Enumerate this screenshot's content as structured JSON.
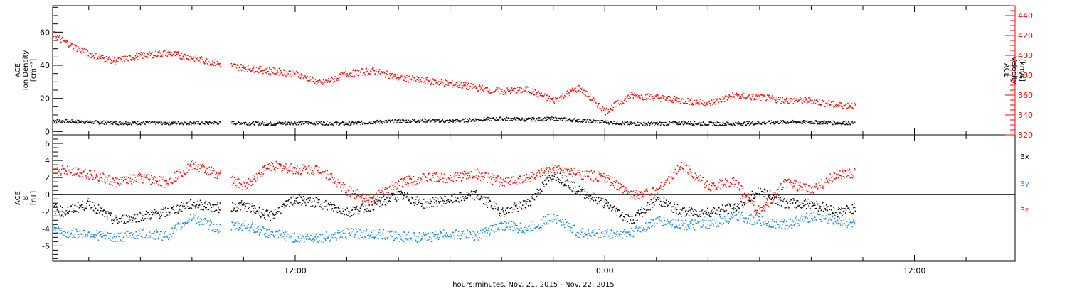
{
  "footer_label": "hours:minutes, Nov. 21, 2015 - Nov. 22, 2015",
  "colors": {
    "axis": "#000000",
    "velocity": "#ff0000",
    "density": "#000000",
    "bx": "#000000",
    "by": "#1e8ad4",
    "bz": "#ff0000"
  },
  "chart_data": [
    {
      "type": "scatter",
      "panel": "plasma",
      "ylabel_lines": [
        "ACE",
        "Ion Density",
        "[cm⁻³]"
      ],
      "ylim": [
        -2,
        76
      ],
      "yticks": [
        "0",
        "20",
        "40",
        "60"
      ],
      "ytick_values": [
        0,
        20,
        40,
        60
      ],
      "y2label_lines": [
        "ACE",
        "Velocity",
        "[km/s]"
      ],
      "y2lim": [
        320,
        450
      ],
      "y2ticks": [
        "320",
        "340",
        "360",
        "380",
        "400",
        "420",
        "440"
      ],
      "y2tick_values": [
        320,
        340,
        360,
        380,
        400,
        420,
        440
      ],
      "xlim_hours": [
        2.6,
        39.9
      ],
      "xtick_labels": [
        "12:00",
        "0:00",
        "12:00"
      ],
      "xtick_hours": [
        12,
        24,
        36
      ],
      "series": [
        {
          "name": "Ion Density",
          "axis": "left",
          "color": "#000000",
          "x": [
            2.6,
            3,
            4,
            5,
            6,
            7,
            8,
            9,
            10,
            11,
            12,
            13,
            14,
            15,
            16,
            17,
            18,
            19,
            20,
            21,
            22,
            23,
            24,
            25,
            26,
            27,
            28,
            29,
            30,
            31,
            32,
            33,
            33.7
          ],
          "y": [
            7,
            6.5,
            6,
            5.5,
            5.5,
            5.5,
            5.5,
            5.5,
            5.5,
            5,
            5.5,
            5.5,
            5,
            6,
            6.5,
            7,
            6.5,
            7.5,
            8,
            7.5,
            8,
            7,
            6,
            5,
            5,
            5.5,
            5,
            5,
            5.5,
            6,
            6,
            5.5,
            5.5
          ]
        },
        {
          "name": "Velocity",
          "axis": "right",
          "color": "#ff0000",
          "x": [
            2.6,
            3,
            3.5,
            4,
            4.5,
            5,
            6,
            7,
            8,
            9,
            10,
            11,
            12,
            13,
            14,
            15,
            16,
            17,
            18,
            19,
            20,
            21,
            22,
            23,
            24,
            25,
            26,
            27,
            28,
            29,
            30,
            31,
            32,
            33,
            33.7
          ],
          "y": [
            422,
            415,
            408,
            402,
            398,
            395,
            400,
            403,
            398,
            392,
            388,
            385,
            382,
            372,
            382,
            385,
            378,
            375,
            372,
            368,
            364,
            366,
            355,
            368,
            344,
            360,
            358,
            355,
            352,
            360,
            358,
            355,
            355,
            350,
            350
          ]
        }
      ]
    },
    {
      "type": "scatter",
      "panel": "imf",
      "ylabel_lines": [
        "ACE",
        "B",
        "[nT]"
      ],
      "ylim": [
        -7.8,
        7
      ],
      "yticks": [
        "-6",
        "-4",
        "-2",
        "0",
        "2",
        "4",
        "6"
      ],
      "ytick_values": [
        -6,
        -4,
        -2,
        0,
        2,
        4,
        6
      ],
      "legend": [
        "Bx",
        "By",
        "Bz"
      ],
      "xlim_hours": [
        2.6,
        39.9
      ],
      "xtick_labels": [
        "12:00",
        "0:00",
        "12:00"
      ],
      "xtick_hours": [
        12,
        24,
        36
      ],
      "series": [
        {
          "name": "Bx",
          "color": "#000000",
          "x": [
            2.6,
            3,
            4,
            5,
            6,
            7,
            8,
            9,
            10,
            11,
            12,
            13,
            14,
            15,
            16,
            17,
            18,
            19,
            20,
            21,
            22,
            23,
            24,
            25,
            26,
            27,
            28,
            29,
            30,
            31,
            32,
            33,
            33.7
          ],
          "y": [
            -1.5,
            -2,
            -1,
            -3,
            -2.5,
            -2,
            -1,
            -1.5,
            -1.2,
            -2.5,
            -0.5,
            -1,
            -2,
            -1.2,
            0,
            -1,
            -0.5,
            0,
            -2,
            -1,
            2.5,
            0.5,
            -1,
            -3,
            -0.5,
            -2,
            -2,
            -1.5,
            0.5,
            -1,
            -1,
            -2,
            -1.5
          ]
        },
        {
          "name": "By",
          "color": "#1e8ad4",
          "x": [
            2.6,
            3,
            4,
            5,
            6,
            7,
            8,
            9,
            10,
            11,
            12,
            13,
            14,
            15,
            16,
            17,
            18,
            19,
            20,
            21,
            22,
            23,
            24,
            25,
            26,
            27,
            28,
            29,
            30,
            31,
            32,
            33,
            33.7
          ],
          "y": [
            -3.5,
            -4.5,
            -4.5,
            -5,
            -4.5,
            -4.8,
            -2.5,
            -4,
            -3.5,
            -4.5,
            -5,
            -5,
            -4.5,
            -4.5,
            -4.8,
            -5,
            -4.5,
            -4.8,
            -3.5,
            -4,
            -2.5,
            -4.5,
            -4.5,
            -4.5,
            -3,
            -3.5,
            -3.5,
            -2.5,
            -3,
            -3.5,
            -2.5,
            -3,
            -3.5
          ]
        },
        {
          "name": "Bz",
          "color": "#ff0000",
          "x": [
            2.6,
            3,
            4,
            5,
            6,
            7,
            8,
            9,
            10,
            11,
            12,
            13,
            14,
            15,
            16,
            17,
            18,
            19,
            20,
            21,
            22,
            23,
            24,
            25,
            26,
            27,
            28,
            29,
            30,
            31,
            32,
            33,
            33.7
          ],
          "y": [
            2.5,
            3,
            2.5,
            1.5,
            2,
            1.5,
            3.5,
            2.5,
            1,
            3.5,
            3,
            3,
            0.5,
            -0.5,
            1.5,
            2,
            2,
            2.5,
            1.5,
            2,
            3,
            2.5,
            2,
            0,
            0.5,
            3.5,
            1,
            1.5,
            -2,
            1.5,
            0.5,
            2.5,
            2.5
          ]
        }
      ]
    }
  ]
}
